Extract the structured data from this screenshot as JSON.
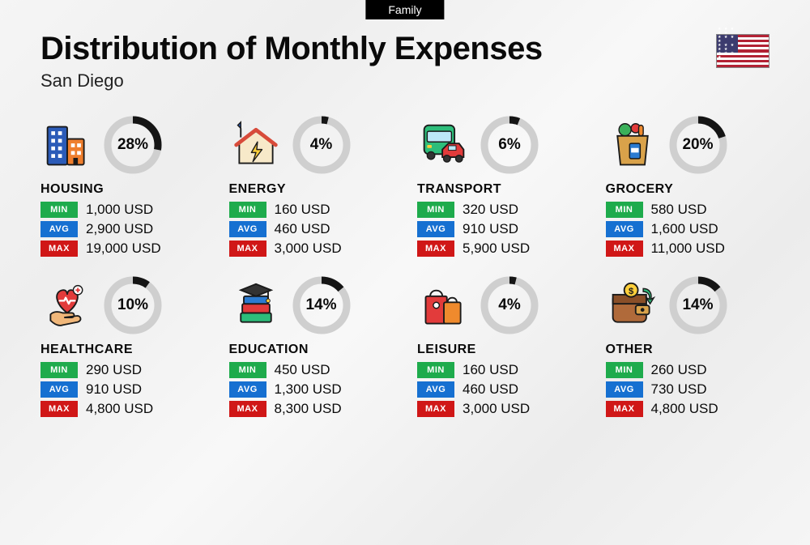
{
  "badge": "Family",
  "title": "Distribution of Monthly Expenses",
  "subtitle": "San Diego",
  "currency": "USD",
  "labels": {
    "min": "MIN",
    "avg": "AVG",
    "max": "MAX"
  },
  "ring": {
    "radius": 31,
    "stroke_width": 9,
    "track_color": "#cfcfcf",
    "progress_color": "#151515"
  },
  "tag_colors": {
    "min": "#1eab4c",
    "avg": "#1670d1",
    "max": "#d01717"
  },
  "categories": [
    {
      "key": "housing",
      "name": "HOUSING",
      "percent": 28,
      "min": "1,000",
      "avg": "2,900",
      "max": "19,000",
      "icon": "buildings"
    },
    {
      "key": "energy",
      "name": "ENERGY",
      "percent": 4,
      "min": "160",
      "avg": "460",
      "max": "3,000",
      "icon": "house-bolt"
    },
    {
      "key": "transport",
      "name": "TRANSPORT",
      "percent": 6,
      "min": "320",
      "avg": "910",
      "max": "5,900",
      "icon": "bus-car"
    },
    {
      "key": "grocery",
      "name": "GROCERY",
      "percent": 20,
      "min": "580",
      "avg": "1,600",
      "max": "11,000",
      "icon": "grocery-bag"
    },
    {
      "key": "healthcare",
      "name": "HEALTHCARE",
      "percent": 10,
      "min": "290",
      "avg": "910",
      "max": "4,800",
      "icon": "heart-hand"
    },
    {
      "key": "education",
      "name": "EDUCATION",
      "percent": 14,
      "min": "450",
      "avg": "1,300",
      "max": "8,300",
      "icon": "grad-books"
    },
    {
      "key": "leisure",
      "name": "LEISURE",
      "percent": 4,
      "min": "160",
      "avg": "460",
      "max": "3,000",
      "icon": "shopping-bags"
    },
    {
      "key": "other",
      "name": "OTHER",
      "percent": 14,
      "min": "260",
      "avg": "730",
      "max": "4,800",
      "icon": "wallet"
    }
  ],
  "icons": {
    "buildings": "<svg viewBox='0 0 64 64' width='60' height='60'><rect x='6' y='8' width='26' height='50' rx='2' fill='#2b5bb8' stroke='#1a1a1a' stroke-width='2'/><rect x='11' y='14' width='5' height='5' fill='#fff'/><rect x='20' y='14' width='5' height='5' fill='#fff'/><rect x='11' y='24' width='5' height='5' fill='#fff'/><rect x='20' y='24' width='5' height='5' fill='#fff'/><rect x='11' y='34' width='5' height='5' fill='#fff'/><rect x='20' y='34' width='5' height='5' fill='#fff'/><rect x='11' y='44' width='5' height='5' fill='#fff'/><rect x='20' y='44' width='5' height='5' fill='#fff'/><rect x='32' y='24' width='22' height='34' rx='2' fill='#ef7e2d' stroke='#1a1a1a' stroke-width='2'/><rect x='37' y='30' width='5' height='5' fill='#fff'/><rect x='45' y='30' width='5' height='5' fill='#fff'/><rect x='37' y='40' width='5' height='5' fill='#fff'/><rect x='45' y='40' width='5' height='5' fill='#fff'/><rect x='40' y='49' width='6' height='9' fill='#1a1a1a'/></svg>",
    "house-bolt": "<svg viewBox='0 0 64 64' width='60' height='60'><path d='M12 10 L12 2 L8 6 Z' fill='#2b5bb8' stroke='#1a1a1a' stroke-width='1.5'/><line x1='12' y1='10' x2='12' y2='22' stroke='#1a1a1a' stroke-width='2'/><path d='M10 30 L32 14 L54 30 L54 56 L10 56 Z' fill='#f7e9c9' stroke='#1a1a1a' stroke-width='2'/><path d='M6 32 L32 12 L58 32' fill='none' stroke='#d84b3a' stroke-width='5' stroke-linecap='round' stroke-linejoin='round'/><path d='M34 28 L26 42 L32 42 L28 54 L40 38 L33 38 Z' fill='#ffcf3a' stroke='#1a1a1a' stroke-width='1.5' stroke-linejoin='round'/></svg>",
    "bus-car": "<svg viewBox='0 0 64 64' width='60' height='60'><rect x='6' y='6' width='40' height='38' rx='6' fill='#2dbd7a' stroke='#1a1a1a' stroke-width='2'/><rect x='10' y='14' width='32' height='14' rx='2' fill='#bce8f7' stroke='#1a1a1a' stroke-width='1.5'/><circle cx='15' cy='46' r='5' fill='#333' stroke='#1a1a1a' stroke-width='1.5'/><circle cx='37' cy='46' r='5' fill='#333' stroke='#1a1a1a' stroke-width='1.5'/><rect x='10' y='32' width='6' height='4' rx='1' fill='#ffcf3a'/><rect x='36' y='32' width='6' height='4' rx='1' fill='#ffcf3a'/><path d='M30 38 L38 30 L52 30 L58 38 L58 48 L30 48 Z' fill='#e23b3b' stroke='#1a1a1a' stroke-width='2'/><rect x='38' y='33' width='10' height='6' fill='#bce8f7' stroke='#1a1a1a' stroke-width='1'/><circle cx='36' cy='50' r='4.5' fill='#333' stroke='#1a1a1a' stroke-width='1.5'/><circle cx='52' cy='50' r='4.5' fill='#333' stroke='#1a1a1a' stroke-width='1.5'/></svg>",
    "grocery-bag": "<svg viewBox='0 0 64 64' width='60' height='60'><ellipse cx='22' cy='12' rx='8' ry='8' fill='#3bb05a' stroke='#1a1a1a' stroke-width='1.5'/><ellipse cx='36' cy='10' rx='6' ry='6' fill='#e23b3b' stroke='#1a1a1a' stroke-width='1.5'/><rect x='40' y='6' width='6' height='14' rx='3' fill='#ef8a2d' stroke='#1a1a1a' stroke-width='1.5'/><path d='M12 20 L52 20 L48 58 L16 58 Z' fill='#d9a24a' stroke='#1a1a1a' stroke-width='2'/><rect x='28' y='30' width='14' height='20' rx='2' fill='#2b7bd1' stroke='#1a1a1a' stroke-width='1.5'/><rect x='30' y='36' width='10' height='6' fill='#fff'/></svg>",
    "heart-hand": "<svg viewBox='0 0 64 64' width='60' height='60'><path d='M32 42 C16 30 14 14 26 12 C32 11 32 18 32 18 C32 18 32 11 38 12 C50 14 48 30 32 42 Z' fill='#e23b3b' stroke='#1a1a1a' stroke-width='2'/><path d='M22 26 L28 26 L30 22 L34 30 L36 26 L42 26' fill='none' stroke='#fff' stroke-width='2.5' stroke-linecap='round' stroke-linejoin='round'/><circle cx='46' cy='12' r='6' fill='#fff' stroke='#1a1a1a' stroke-width='1.5'/><path d='M46 9 L46 15 M43 12 L49 12' stroke='#e23b3b' stroke-width='2'/><path d='M10 44 C14 40 20 40 26 42 L38 42 C42 42 42 48 38 48 L28 48 L44 46 C50 45 52 52 46 54 L26 58 C20 60 14 56 10 52 Z' fill='#f0b77a' stroke='#1a1a1a' stroke-width='2'/></svg>",
    "grad-books": "<svg viewBox='0 0 64 64' width='60' height='60'><rect x='12' y='42' width='40' height='12' rx='2' fill='#2dbd7a' stroke='#1a1a1a' stroke-width='2'/><rect x='14' y='30' width='36' height='12' rx='2' fill='#e23b3b' stroke='#1a1a1a' stroke-width='2'/><rect x='16' y='20' width='32' height='10' rx='2' fill='#2b7bd1' stroke='#1a1a1a' stroke-width='2'/><path d='M32 4 L52 12 L32 20 L12 12 Z' fill='#333' stroke='#1a1a1a' stroke-width='2'/><line x1='48' y1='14' x2='48' y2='24' stroke='#1a1a1a' stroke-width='2'/><circle cx='48' cy='26' r='2.5' fill='#ffcf3a' stroke='#1a1a1a' stroke-width='1'/></svg>",
    "shopping-bags": "<svg viewBox='0 0 64 64' width='60' height='60'><rect x='8' y='20' width='28' height='36' rx='2' fill='#e23b3b' stroke='#1a1a1a' stroke-width='2'/><path d='M14 20 C14 10 30 10 30 20' fill='none' stroke='#1a1a1a' stroke-width='2'/><circle cx='22' cy='32' r='4' fill='#fff' stroke='#1a1a1a' stroke-width='1.5'/><rect x='32' y='28' width='22' height='28' rx='2' fill='#ef8a2d' stroke='#1a1a1a' stroke-width='2'/><path d='M37 28 C37 20 49 20 49 28' fill='none' stroke='#1a1a1a' stroke-width='2'/></svg>",
    "wallet": "<svg viewBox='0 0 64 64' width='60' height='60'><rect x='6' y='18' width='44' height='36' rx='6' fill='#b06a3a' stroke='#1a1a1a' stroke-width='2'/><rect x='6' y='18' width='44' height='12' fill='#8a4f28' stroke='#1a1a1a' stroke-width='2'/><rect x='36' y='32' width='18' height='12' rx='3' fill='#d9a24a' stroke='#1a1a1a' stroke-width='2'/><circle cx='45' cy='38' r='2.5' fill='#1a1a1a'/><circle cx='30' cy='12' r='9' fill='#ffcf3a' stroke='#1a1a1a' stroke-width='2'/><text x='30' y='17' font-size='12' text-anchor='middle' fill='#1a1a1a' font-weight='bold'>$</text><path d='M46 10 C54 10 58 16 56 24 L60 22 L55 30 L50 22 L54 24 C55 18 52 14 46 14 Z' fill='#2dbd7a' stroke='#1a1a1a' stroke-width='1.5'/></svg>"
  }
}
